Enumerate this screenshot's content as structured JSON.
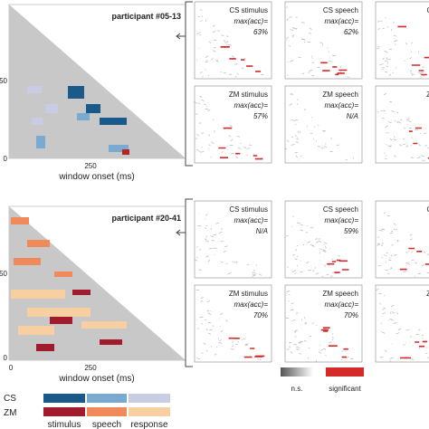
{
  "top": {
    "participant": "participant #05-13",
    "xlabel": "window onset (ms)",
    "xtick": "250",
    "ytick_mid": "50",
    "ytick_zero": "0",
    "panels": [
      {
        "title": "CS stimulus",
        "metric": "max(acc)=",
        "value": "63%"
      },
      {
        "title": "CS speech",
        "metric": "max(acc)=",
        "value": "62%"
      },
      {
        "title": "CS res"
      },
      {
        "title": "ZM stimulus",
        "metric": "max(acc)=",
        "value": "57%"
      },
      {
        "title": "ZM speech",
        "metric": "max(acc)=",
        "value": "N/A"
      },
      {
        "title": "ZM res"
      }
    ]
  },
  "bottom": {
    "participant": "participant #20-41",
    "xlabel": "window onset (ms)",
    "xtick": "250",
    "xtick_zero": "0",
    "ytick_mid": "50",
    "ytick_zero": "0",
    "panels": [
      {
        "title": "CS stimulus",
        "metric": "max(acc)=",
        "value": "N/A"
      },
      {
        "title": "CS speech",
        "metric": "max(acc)=",
        "value": "59%"
      },
      {
        "title": "CS res"
      },
      {
        "title": "ZM stimulus",
        "metric": "max(acc)=",
        "value": "70%"
      },
      {
        "title": "ZM speech",
        "metric": "max(acc)=",
        "value": "70%"
      },
      {
        "title": "ZM res"
      }
    ]
  },
  "significance_legend": {
    "ns": "n.s.",
    "sig": "significant"
  },
  "color_legend": {
    "rows": [
      "CS",
      "ZM"
    ],
    "columns": [
      "stimulus",
      "speech",
      "response"
    ]
  }
}
